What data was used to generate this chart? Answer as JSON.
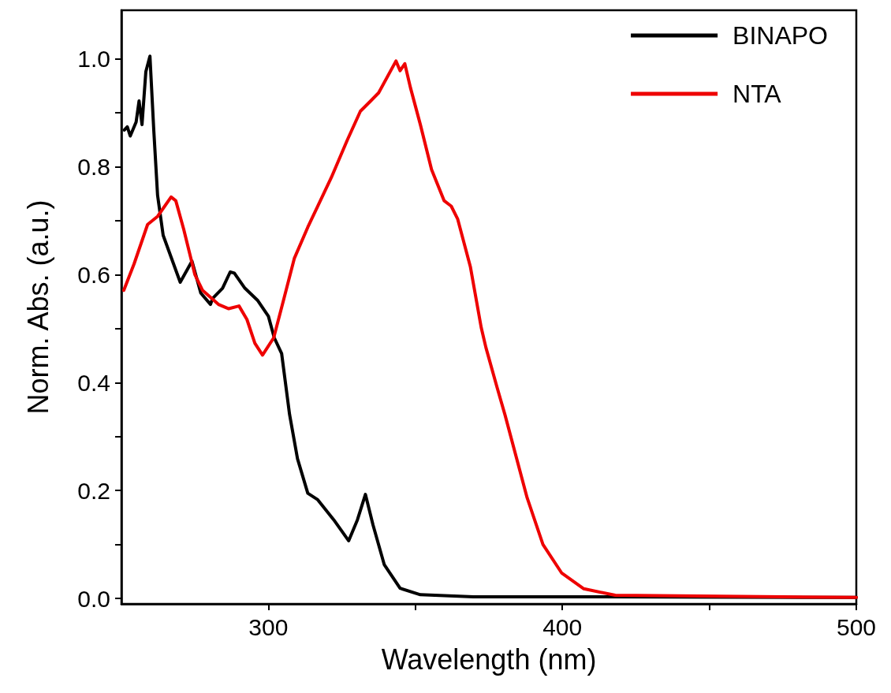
{
  "chart_data": {
    "type": "line",
    "xlabel": "Wavelength (nm)",
    "ylabel": "Norm. Abs. (a.u.)",
    "xlim": [
      250,
      500
    ],
    "ylim": [
      -0.01,
      1.09
    ],
    "xticks": [
      300,
      {
        "value": 350,
        "label": null
      },
      400,
      {
        "value": 450,
        "label": null
      },
      500
    ],
    "yticks": [
      "0.0",
      {
        "value": 0.1,
        "label": null
      },
      0.2,
      {
        "value": 0.3,
        "label": null
      },
      0.4,
      {
        "value": 0.5,
        "label": null
      },
      0.6,
      {
        "value": 0.7,
        "label": null
      },
      0.8,
      {
        "value": 0.9,
        "label": null
      },
      "1.0"
    ],
    "grid": false,
    "legend": "top right",
    "marker": "none",
    "line_style": "solid",
    "series": [
      {
        "name": "BINAPO",
        "color": "#000000",
        "x": [
          251,
          252,
          253,
          255,
          256,
          257,
          258.3,
          259.7,
          261,
          262.3,
          264.2,
          270,
          274,
          277,
          280.3,
          281,
          284.4,
          287,
          288.4,
          292,
          296.4,
          300,
          302,
          304.5,
          307.2,
          309.9,
          313.4,
          316.8,
          322.2,
          327.3,
          330.3,
          333,
          335.6,
          339.4,
          344.8,
          351.7,
          369.7,
          412.7,
          500
        ],
        "values": [
          0.868,
          0.874,
          0.857,
          0.883,
          0.922,
          0.878,
          0.976,
          1.005,
          0.868,
          0.747,
          0.673,
          0.586,
          0.625,
          0.566,
          0.545,
          0.556,
          0.575,
          0.605,
          0.603,
          0.575,
          0.552,
          0.523,
          0.483,
          0.454,
          0.341,
          0.259,
          0.195,
          0.183,
          0.146,
          0.107,
          0.146,
          0.193,
          0.136,
          0.063,
          0.019,
          0.007,
          0.003,
          0.003,
          0.002
        ]
      },
      {
        "name": "NTA",
        "color": "#ee0000",
        "x": [
          250.8,
          254.3,
          258.9,
          262.3,
          266.9,
          268.5,
          271.2,
          275,
          277.6,
          283,
          286.5,
          290,
          292.7,
          295.4,
          298,
          301.8,
          305.3,
          308.8,
          313.4,
          321.4,
          326.8,
          331.3,
          334.8,
          337.5,
          343.4,
          344.8,
          346.4,
          348.3,
          351.7,
          355.5,
          359.8,
          362.2,
          364.4,
          368.7,
          372.4,
          374,
          377.8,
          380.5,
          388,
          393.4,
          399.8,
          407.3,
          418,
          500
        ],
        "values": [
          0.571,
          0.62,
          0.693,
          0.708,
          0.744,
          0.737,
          0.684,
          0.6,
          0.571,
          0.545,
          0.537,
          0.542,
          0.517,
          0.473,
          0.451,
          0.483,
          0.556,
          0.63,
          0.688,
          0.78,
          0.849,
          0.903,
          0.922,
          0.937,
          0.996,
          0.978,
          0.991,
          0.947,
          0.878,
          0.795,
          0.737,
          0.727,
          0.703,
          0.615,
          0.502,
          0.465,
          0.391,
          0.34,
          0.187,
          0.1,
          0.047,
          0.018,
          0.006,
          0.002
        ]
      }
    ]
  }
}
